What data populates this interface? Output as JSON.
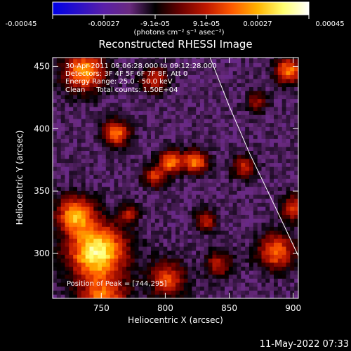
{
  "colorbar": {
    "ticks": [
      "-0.00045",
      "-0.00027",
      "-9.1e-05",
      "9.1e-05",
      "0.00027",
      "0.00045"
    ],
    "unit_label": "(photons cm⁻² s⁻¹ asec⁻²)",
    "colors": [
      "#0000e6",
      "#2a10c8",
      "#5a1fa8",
      "#6a2a80",
      "#000000",
      "#6b0000",
      "#c01800",
      "#ff5a00",
      "#ffb400",
      "#ffff70",
      "#ffffff"
    ]
  },
  "header": {
    "title": "Reconstructed RHESSI Image",
    "info_lines": [
      "30-Apr-2011 09:06:28.000 to 09:12:28.000",
      "Detectors: 3F 4F 5F 6F 7F 8F, Att 0",
      "Energy Range: 25.0 - 50.0 keV",
      "Clean     Total counts: 1.50E+04"
    ],
    "peak_note": "Position of Peak = [744,295]"
  },
  "timestamp": "11-May-2022 07:33",
  "chart_data": {
    "type": "heatmap",
    "title": "Reconstructed RHESSI Image",
    "xlabel": "Heliocentric X (arcsec)",
    "ylabel": "Heliocentric Y (arcsec)",
    "xlim": [
      712,
      904
    ],
    "ylim": [
      264,
      457
    ],
    "xticks": [
      750,
      800,
      850,
      900
    ],
    "yticks": [
      300,
      350,
      400,
      450
    ],
    "colorbar_range": [
      -0.00045,
      0.00045
    ],
    "peak_position": [
      744,
      295
    ],
    "limb_curve": [
      [
        835,
        457
      ],
      [
        850,
        418
      ],
      [
        866,
        380
      ],
      [
        880,
        350
      ],
      [
        893,
        322
      ],
      [
        904,
        298
      ]
    ]
  }
}
